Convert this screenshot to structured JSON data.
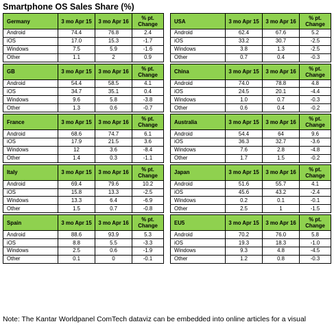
{
  "title": "Smartphone OS Sales Share (%)",
  "headers": {
    "col1": "3 mo Apr 15",
    "col2": "3 mo Apr 16",
    "col3": "% pt. Change"
  },
  "tables": [
    {
      "country": "Germany",
      "rows": [
        {
          "os": "Android",
          "v1": "74.4",
          "v2": "76.8",
          "chg": "2.4"
        },
        {
          "os": "iOS",
          "v1": "17.0",
          "v2": "15.3",
          "chg": "-1.7"
        },
        {
          "os": "Windows",
          "v1": "7.5",
          "v2": "5.9",
          "chg": "-1.6"
        },
        {
          "os": "Other",
          "v1": "1.1",
          "v2": "2",
          "chg": "0.9"
        }
      ]
    },
    {
      "country": "USA",
      "rows": [
        {
          "os": "Android",
          "v1": "62.4",
          "v2": "67.6",
          "chg": "5.2"
        },
        {
          "os": "iOS",
          "v1": "33.2",
          "v2": "30.7",
          "chg": "-2.5"
        },
        {
          "os": "Windows",
          "v1": "3.8",
          "v2": "1.3",
          "chg": "-2.5"
        },
        {
          "os": "Other",
          "v1": "0.7",
          "v2": "0.4",
          "chg": "-0.3"
        }
      ]
    },
    {
      "country": "GB",
      "rows": [
        {
          "os": "Android",
          "v1": "54.4",
          "v2": "58.5",
          "chg": "4.1"
        },
        {
          "os": "iOS",
          "v1": "34.7",
          "v2": "35.1",
          "chg": "0.4"
        },
        {
          "os": "Windows",
          "v1": "9.6",
          "v2": "5.8",
          "chg": "-3.8"
        },
        {
          "os": "Other",
          "v1": "1.3",
          "v2": "0.6",
          "chg": "-0.7"
        }
      ]
    },
    {
      "country": "China",
      "rows": [
        {
          "os": "Android",
          "v1": "74.0",
          "v2": "78.8",
          "chg": "4.8"
        },
        {
          "os": "iOS",
          "v1": "24.5",
          "v2": "20.1",
          "chg": "-4.4"
        },
        {
          "os": "Windows",
          "v1": "1.0",
          "v2": "0.7",
          "chg": "-0.3"
        },
        {
          "os": "Other",
          "v1": "0.6",
          "v2": "0.4",
          "chg": "-0.2"
        }
      ]
    },
    {
      "country": "France",
      "rows": [
        {
          "os": "Android",
          "v1": "68.6",
          "v2": "74.7",
          "chg": "6.1"
        },
        {
          "os": "iOS",
          "v1": "17.9",
          "v2": "21.5",
          "chg": "3.6"
        },
        {
          "os": "Windows",
          "v1": "12",
          "v2": "3.6",
          "chg": "-8.4"
        },
        {
          "os": "Other",
          "v1": "1.4",
          "v2": "0.3",
          "chg": "-1.1"
        }
      ]
    },
    {
      "country": "Australia",
      "rows": [
        {
          "os": "Android",
          "v1": "54.4",
          "v2": "64",
          "chg": "9.6"
        },
        {
          "os": "iOS",
          "v1": "36.3",
          "v2": "32.7",
          "chg": "-3.6"
        },
        {
          "os": "Windows",
          "v1": "7.6",
          "v2": "2.8",
          "chg": "-4.8"
        },
        {
          "os": "Other",
          "v1": "1.7",
          "v2": "1.5",
          "chg": "-0.2"
        }
      ]
    },
    {
      "country": "Italy",
      "rows": [
        {
          "os": "Android",
          "v1": "69.4",
          "v2": "79.6",
          "chg": "10.2"
        },
        {
          "os": "iOS",
          "v1": "15.8",
          "v2": "13.3",
          "chg": "-2.5"
        },
        {
          "os": "Windows",
          "v1": "13.3",
          "v2": "6.4",
          "chg": "-6.9"
        },
        {
          "os": "Other",
          "v1": "1.5",
          "v2": "0.7",
          "chg": "-0.8"
        }
      ]
    },
    {
      "country": "Japan",
      "rows": [
        {
          "os": "Android",
          "v1": "51.6",
          "v2": "55.7",
          "chg": "4.1"
        },
        {
          "os": "iOS",
          "v1": "45.6",
          "v2": "43.2",
          "chg": "-2.4"
        },
        {
          "os": "Windows",
          "v1": "0.2",
          "v2": "0.1",
          "chg": "-0.1"
        },
        {
          "os": "Other",
          "v1": "2.5",
          "v2": "1",
          "chg": "-1.5"
        }
      ]
    },
    {
      "country": "Spain",
      "rows": [
        {
          "os": "Android",
          "v1": "88.6",
          "v2": "93.9",
          "chg": "5.3"
        },
        {
          "os": "iOS",
          "v1": "8.8",
          "v2": "5.5",
          "chg": "-3.3"
        },
        {
          "os": "Windows",
          "v1": "2.5",
          "v2": "0.6",
          "chg": "-1.9"
        },
        {
          "os": "Other",
          "v1": "0.1",
          "v2": "0",
          "chg": "-0.1"
        }
      ]
    },
    {
      "country": "EU5",
      "rows": [
        {
          "os": "Android",
          "v1": "70.2",
          "v2": "76.0",
          "chg": "5.8"
        },
        {
          "os": "iOS",
          "v1": "19.3",
          "v2": "18.3",
          "chg": "-1.0"
        },
        {
          "os": "Windows",
          "v1": "9.3",
          "v2": "4.8",
          "chg": "-4.5"
        },
        {
          "os": "Other",
          "v1": "1.2",
          "v2": "0.8",
          "chg": "-0.3"
        }
      ]
    }
  ],
  "note": "Note: The Kantar Worldpanel ComTech dataviz can be embedded into online articles for a visual",
  "colors": {
    "header_green": "#8fd14f",
    "border": "#000000"
  }
}
